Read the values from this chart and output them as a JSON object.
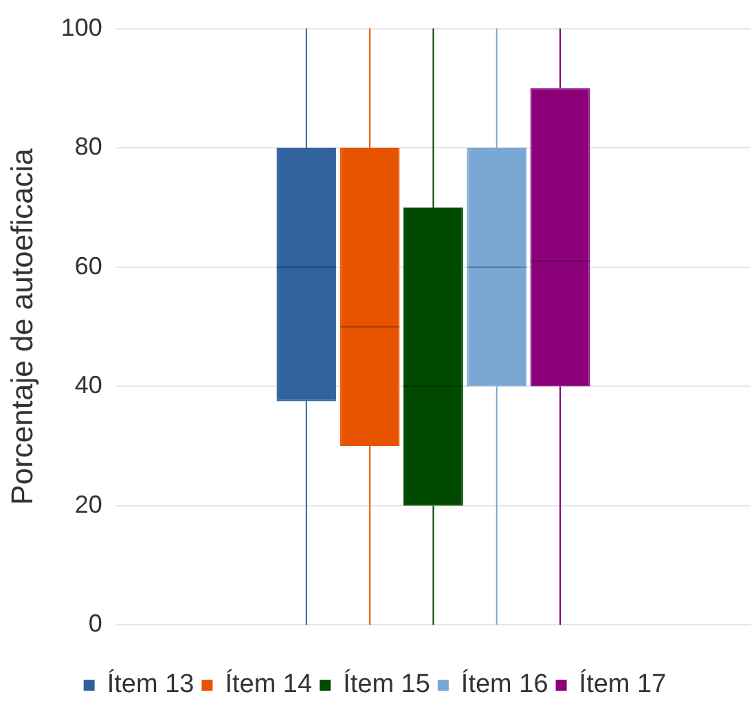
{
  "chart_data": {
    "type": "box",
    "ylabel": "Porcentaje de autoeficacia",
    "categories": [
      null
    ],
    "ylim": [
      0,
      100
    ],
    "yticks": [
      0,
      20,
      40,
      60,
      80,
      100
    ],
    "grid": "y",
    "legend": "bottom",
    "series": [
      {
        "name": "Ítem 13",
        "color": "#31629e",
        "boxes": [
          {
            "low": 0,
            "q1": 37.5,
            "median": 60,
            "q3": 80,
            "high": 100
          }
        ]
      },
      {
        "name": "Ítem 14",
        "color": "#e85300",
        "boxes": [
          {
            "low": 0,
            "q1": 30,
            "median": 50,
            "q3": 80,
            "high": 100
          }
        ]
      },
      {
        "name": "Ítem 15",
        "color": "#004a00",
        "boxes": [
          {
            "low": 0,
            "q1": 20,
            "median": 40,
            "q3": 70,
            "high": 100
          }
        ]
      },
      {
        "name": "Ítem 16",
        "color": "#7aa8d4",
        "boxes": [
          {
            "low": 0,
            "q1": 40,
            "median": 60,
            "q3": 80,
            "high": 100
          }
        ]
      },
      {
        "name": "Ítem 17",
        "color": "#8b0078",
        "boxes": [
          {
            "low": 0,
            "q1": 40,
            "median": 61,
            "q3": 90,
            "high": 100
          }
        ]
      }
    ]
  }
}
